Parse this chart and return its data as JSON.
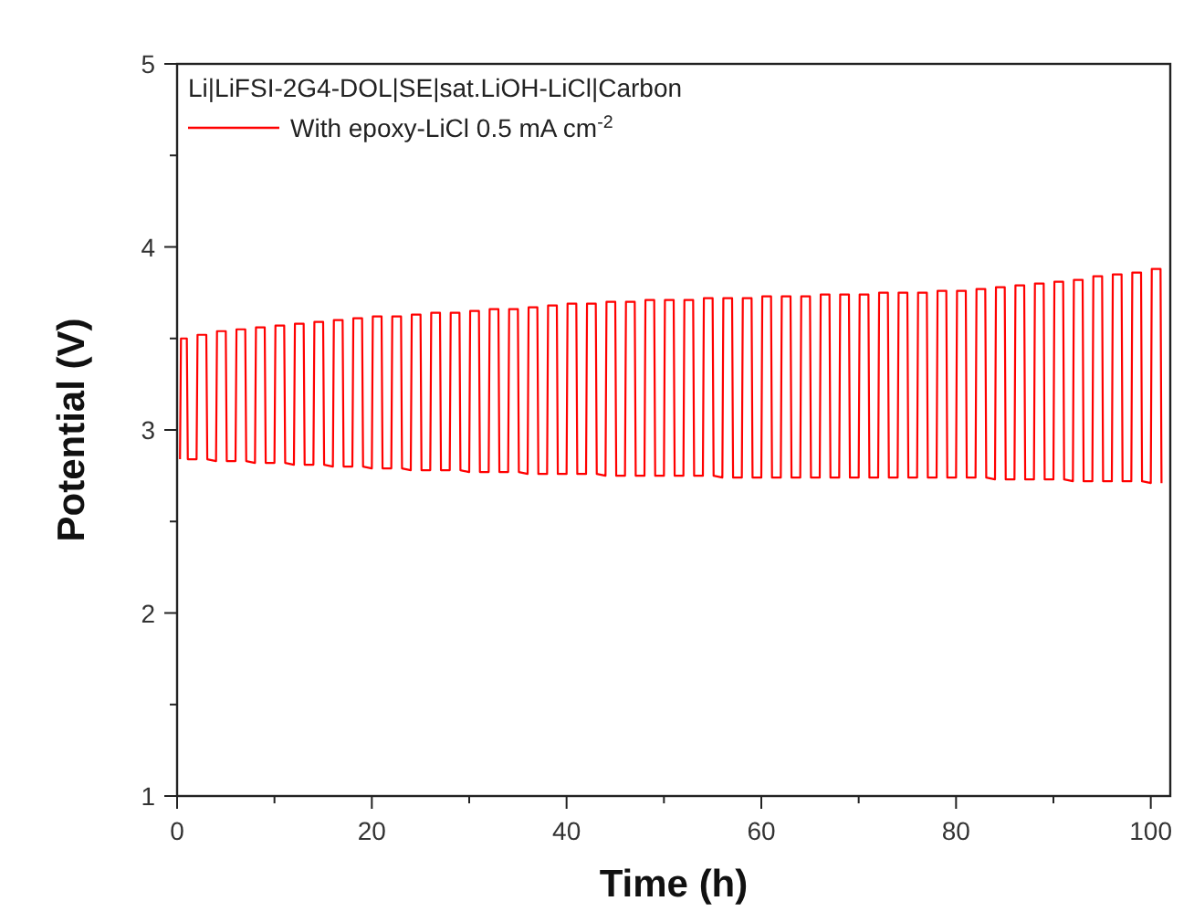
{
  "chart_data": {
    "type": "line",
    "xlabel": "Time (h)",
    "ylabel": "Potential (V)",
    "legend_title": "Li|LiFSI-2G4-DOL|SE|sat.LiOH-LiCl|Carbon",
    "legend": "top left",
    "grid": false,
    "marker": "none",
    "line_style": "solid",
    "xlim": [
      0,
      102
    ],
    "ylim": [
      1,
      5
    ],
    "xticks": [
      0,
      {
        "value": 10,
        "label": null
      },
      20,
      {
        "value": 30,
        "label": null
      },
      40,
      {
        "value": 50,
        "label": null
      },
      60,
      {
        "value": 70,
        "label": null
      },
      80,
      {
        "value": 90,
        "label": null
      },
      100
    ],
    "yticks": [
      1,
      {
        "value": 1.5,
        "label": null
      },
      2,
      {
        "value": 2.5,
        "label": null
      },
      3,
      {
        "value": 3.5,
        "label": null
      },
      4,
      {
        "value": 4.5,
        "label": null
      },
      5
    ],
    "series": [
      {
        "name": "With epoxy-LiCl 0.5 mA cm$^{-2}$",
        "color": "#ff0000",
        "x": [
          0.3,
          0.4,
          1,
          1.1,
          2,
          2.1,
          3,
          3.1,
          4,
          4.1,
          5,
          5.1,
          6,
          6.1,
          7,
          7.1,
          8,
          8.1,
          9,
          9.1,
          10,
          10.1,
          11,
          11.1,
          12,
          12.1,
          13,
          13.1,
          14,
          14.1,
          15,
          15.1,
          16,
          16.1,
          17,
          17.1,
          18,
          18.1,
          19,
          19.1,
          20,
          20.1,
          21,
          21.1,
          22,
          22.1,
          23,
          23.1,
          24,
          24.1,
          25,
          25.1,
          26,
          26.1,
          27,
          27.1,
          28,
          28.1,
          29,
          29.1,
          30,
          30.1,
          31,
          31.1,
          32,
          32.1,
          33,
          33.1,
          34,
          34.1,
          35,
          35.1,
          36,
          36.1,
          37,
          37.1,
          38,
          38.1,
          39,
          39.1,
          40,
          40.1,
          41,
          41.1,
          42,
          42.1,
          43,
          43.1,
          44,
          44.1,
          45,
          45.1,
          46,
          46.1,
          47,
          47.1,
          48,
          48.1,
          49,
          49.1,
          50,
          50.1,
          51,
          51.1,
          52,
          52.1,
          53,
          53.1,
          54,
          54.1,
          55,
          55.1,
          56,
          56.1,
          57,
          57.1,
          58,
          58.1,
          59,
          59.1,
          60,
          60.1,
          61,
          61.1,
          62,
          62.1,
          63,
          63.1,
          64,
          64.1,
          65,
          65.1,
          66,
          66.1,
          67,
          67.1,
          68,
          68.1,
          69,
          69.1,
          70,
          70.1,
          71,
          71.1,
          72,
          72.1,
          73,
          73.1,
          74,
          74.1,
          75,
          75.1,
          76,
          76.1,
          77,
          77.1,
          78,
          78.1,
          79,
          79.1,
          80,
          80.1,
          81,
          81.1,
          82,
          82.1,
          83,
          83.1,
          84,
          84.1,
          85,
          85.1,
          86,
          86.1,
          87,
          87.1,
          88,
          88.1,
          89,
          89.1,
          90,
          90.1,
          91,
          91.1,
          92,
          92.1,
          93,
          93.1,
          94,
          94.1,
          95,
          95.1,
          96,
          96.1,
          97,
          97.1,
          98,
          98.1,
          99,
          99.1,
          100,
          100.1,
          101,
          101.1
        ],
        "values": [
          2.84,
          3.5,
          3.5,
          2.84,
          2.84,
          3.52,
          3.52,
          2.84,
          2.83,
          3.54,
          3.54,
          2.83,
          2.83,
          3.55,
          3.55,
          2.83,
          2.82,
          3.56,
          3.56,
          2.82,
          2.82,
          3.57,
          3.57,
          2.82,
          2.81,
          3.58,
          3.58,
          2.81,
          2.81,
          3.59,
          3.59,
          2.81,
          2.8,
          3.6,
          3.6,
          2.8,
          2.8,
          3.61,
          3.61,
          2.8,
          2.79,
          3.62,
          3.62,
          2.79,
          2.79,
          3.62,
          3.62,
          2.79,
          2.78,
          3.63,
          3.63,
          2.78,
          2.78,
          3.64,
          3.64,
          2.78,
          2.78,
          3.64,
          3.64,
          2.78,
          2.77,
          3.65,
          3.65,
          2.77,
          2.77,
          3.66,
          3.66,
          2.77,
          2.77,
          3.66,
          3.66,
          2.77,
          2.76,
          3.67,
          3.67,
          2.76,
          2.76,
          3.68,
          3.68,
          2.76,
          2.76,
          3.69,
          3.69,
          2.76,
          2.76,
          3.69,
          3.69,
          2.76,
          2.75,
          3.7,
          3.7,
          2.75,
          2.75,
          3.7,
          3.7,
          2.75,
          2.75,
          3.71,
          3.71,
          2.75,
          2.75,
          3.71,
          3.71,
          2.75,
          2.75,
          3.71,
          3.71,
          2.75,
          2.75,
          3.72,
          3.72,
          2.75,
          2.74,
          3.72,
          3.72,
          2.74,
          2.74,
          3.72,
          3.72,
          2.74,
          2.74,
          3.73,
          3.73,
          2.74,
          2.74,
          3.73,
          3.73,
          2.74,
          2.74,
          3.73,
          3.73,
          2.74,
          2.74,
          3.74,
          3.74,
          2.74,
          2.74,
          3.74,
          3.74,
          2.74,
          2.74,
          3.74,
          3.74,
          2.74,
          2.74,
          3.75,
          3.75,
          2.74,
          2.74,
          3.75,
          3.75,
          2.74,
          2.74,
          3.75,
          3.75,
          2.74,
          2.74,
          3.76,
          3.76,
          2.74,
          2.74,
          3.76,
          3.76,
          2.74,
          2.74,
          3.77,
          3.77,
          2.74,
          2.73,
          3.78,
          3.78,
          2.73,
          2.73,
          3.79,
          3.79,
          2.73,
          2.73,
          3.8,
          3.8,
          2.73,
          2.73,
          3.81,
          3.81,
          2.73,
          2.72,
          3.82,
          3.82,
          2.72,
          2.72,
          3.84,
          3.84,
          2.72,
          2.72,
          3.85,
          3.85,
          2.72,
          2.72,
          3.86,
          3.86,
          2.72,
          2.71,
          3.88,
          3.88,
          2.71
        ]
      }
    ]
  }
}
